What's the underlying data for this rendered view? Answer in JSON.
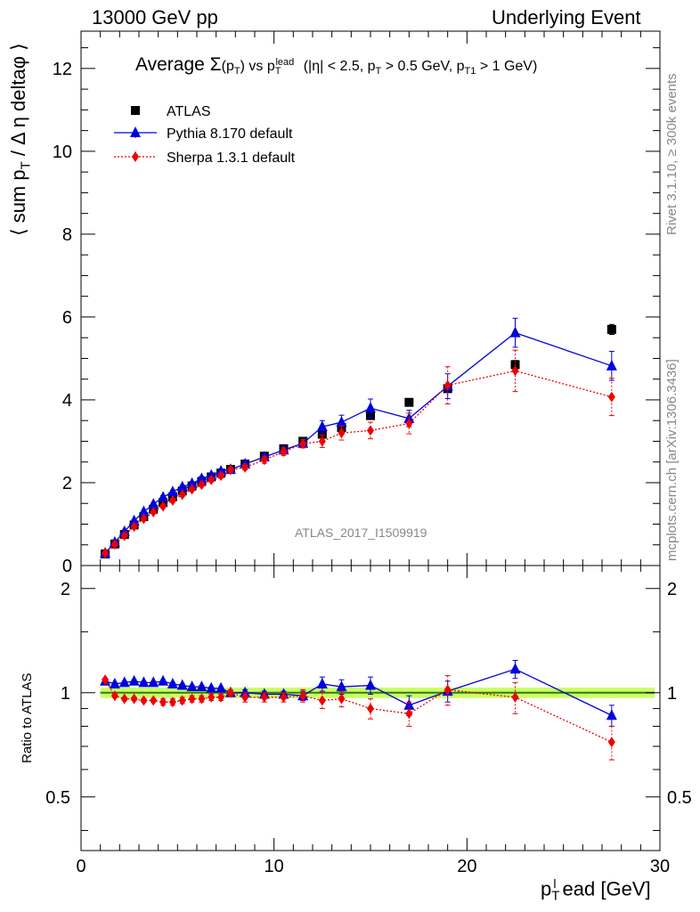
{
  "header": {
    "left": "13000 GeV pp",
    "right": "Underlying Event"
  },
  "side_labels": {
    "rivet": "Rivet 3.1.10, ≥ 300k events",
    "mcplots": "mcplots.cern.ch [arXiv:1306.3436]"
  },
  "watermark": "ATLAS_2017_I1509919",
  "colors": {
    "atlas": "#000000",
    "pythia": "#0000dd",
    "sherpa": "#ee0000",
    "band": "#ccff66",
    "ratio_line": "#2e7d00"
  },
  "chart_data": [
    {
      "type": "scatter",
      "title": "Average Σ(pT) vs pT^lead (|η| < 2.5, pT > 0.5 GeV, pT1 > 1 GeV)",
      "xlabel": "pT^lead [GeV]",
      "ylabel": "⟨ sum pT / Δη deltaφ ⟩",
      "xlim": [
        0,
        30
      ],
      "ylim": [
        0,
        12.9
      ],
      "yticks": [
        0,
        2,
        4,
        6,
        8,
        10,
        12
      ],
      "legend_position": "top-left",
      "x": [
        1.25,
        1.75,
        2.25,
        2.75,
        3.25,
        3.75,
        4.25,
        4.75,
        5.25,
        5.75,
        6.25,
        6.75,
        7.25,
        7.75,
        8.5,
        9.5,
        10.5,
        11.5,
        12.5,
        13.5,
        15.0,
        17.0,
        19.0,
        22.5,
        27.5
      ],
      "series": [
        {
          "name": "ATLAS",
          "marker": "square",
          "values": [
            0.28,
            0.52,
            0.75,
            0.98,
            1.18,
            1.36,
            1.52,
            1.66,
            1.8,
            1.92,
            2.03,
            2.14,
            2.23,
            2.32,
            2.45,
            2.64,
            2.82,
            3.0,
            3.17,
            3.33,
            3.62,
            3.94,
            4.27,
            4.85,
            5.7
          ],
          "errors": [
            0.01,
            0.01,
            0.01,
            0.01,
            0.01,
            0.01,
            0.01,
            0.01,
            0.02,
            0.02,
            0.02,
            0.02,
            0.02,
            0.02,
            0.02,
            0.03,
            0.03,
            0.03,
            0.04,
            0.04,
            0.05,
            0.06,
            0.08,
            0.1,
            0.12
          ]
        },
        {
          "name": "Pythia 8.170 default",
          "marker": "triangle",
          "values": [
            0.3,
            0.56,
            0.82,
            1.08,
            1.3,
            1.48,
            1.65,
            1.78,
            1.9,
            1.98,
            2.1,
            2.18,
            2.28,
            2.32,
            2.45,
            2.62,
            2.79,
            2.95,
            3.35,
            3.46,
            3.8,
            3.55,
            4.33,
            5.62,
            4.82
          ],
          "errors": [
            0.01,
            0.02,
            0.02,
            0.03,
            0.03,
            0.03,
            0.04,
            0.04,
            0.04,
            0.04,
            0.05,
            0.05,
            0.05,
            0.05,
            0.05,
            0.06,
            0.07,
            0.08,
            0.15,
            0.17,
            0.22,
            0.2,
            0.3,
            0.35,
            0.35
          ]
        },
        {
          "name": "Sherpa 1.3.1 default",
          "marker": "diamond",
          "values": [
            0.3,
            0.51,
            0.72,
            0.94,
            1.13,
            1.29,
            1.43,
            1.57,
            1.71,
            1.84,
            1.95,
            2.07,
            2.17,
            2.31,
            2.37,
            2.55,
            2.75,
            2.94,
            3.0,
            3.2,
            3.26,
            3.43,
            4.35,
            4.7,
            4.07
          ],
          "errors": [
            0.01,
            0.02,
            0.02,
            0.03,
            0.03,
            0.03,
            0.04,
            0.04,
            0.04,
            0.05,
            0.05,
            0.05,
            0.06,
            0.06,
            0.06,
            0.08,
            0.09,
            0.1,
            0.15,
            0.17,
            0.2,
            0.25,
            0.45,
            0.5,
            0.45
          ]
        }
      ]
    },
    {
      "type": "scatter",
      "ylabel": "Ratio to ATLAS",
      "xlabel": "pT^lead [GeV]",
      "xlim": [
        0,
        30
      ],
      "ylim": [
        0.35,
        2.33
      ],
      "ylog": true,
      "yticks": [
        0.5,
        1,
        2
      ],
      "xticks": [
        0,
        10,
        20,
        30
      ],
      "x": [
        1.25,
        1.75,
        2.25,
        2.75,
        3.25,
        3.75,
        4.25,
        4.75,
        5.25,
        5.75,
        6.25,
        6.75,
        7.25,
        7.75,
        8.5,
        9.5,
        10.5,
        11.5,
        12.5,
        13.5,
        15.0,
        17.0,
        19.0,
        22.5,
        27.5
      ],
      "series": [
        {
          "name": "Pythia 8.170 default",
          "marker": "triangle",
          "values": [
            1.08,
            1.06,
            1.07,
            1.08,
            1.07,
            1.07,
            1.08,
            1.06,
            1.05,
            1.04,
            1.04,
            1.03,
            1.03,
            1.0,
            1.0,
            0.99,
            0.99,
            0.98,
            1.06,
            1.04,
            1.05,
            0.92,
            1.01,
            1.17,
            0.86
          ],
          "errors": [
            0.01,
            0.01,
            0.01,
            0.01,
            0.01,
            0.01,
            0.01,
            0.01,
            0.01,
            0.01,
            0.01,
            0.01,
            0.01,
            0.01,
            0.02,
            0.02,
            0.02,
            0.03,
            0.05,
            0.05,
            0.06,
            0.06,
            0.07,
            0.07,
            0.06
          ]
        },
        {
          "name": "Sherpa 1.3.1 default",
          "marker": "diamond",
          "values": [
            1.09,
            0.98,
            0.96,
            0.96,
            0.95,
            0.95,
            0.94,
            0.94,
            0.95,
            0.96,
            0.96,
            0.97,
            0.97,
            1.0,
            0.97,
            0.97,
            0.97,
            0.98,
            0.95,
            0.96,
            0.9,
            0.87,
            1.02,
            0.97,
            0.72
          ],
          "errors": [
            0.01,
            0.01,
            0.01,
            0.01,
            0.01,
            0.01,
            0.02,
            0.02,
            0.02,
            0.02,
            0.02,
            0.02,
            0.02,
            0.02,
            0.03,
            0.03,
            0.03,
            0.04,
            0.05,
            0.05,
            0.06,
            0.07,
            0.1,
            0.1,
            0.08
          ]
        }
      ]
    }
  ]
}
